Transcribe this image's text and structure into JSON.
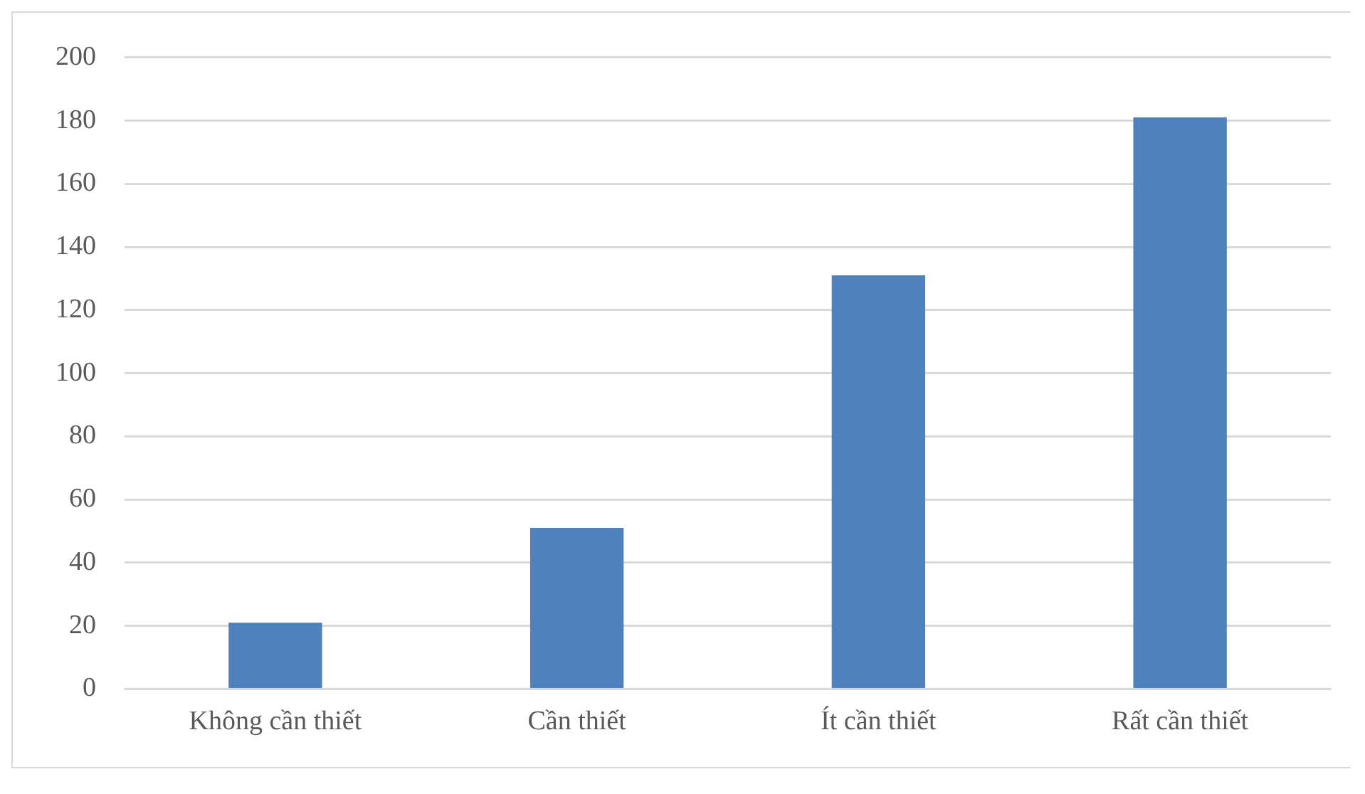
{
  "chart_data": {
    "type": "bar",
    "categories": [
      "Không cần thiết",
      "Cần thiết",
      "Ít cần thiết",
      "Rất cần thiết"
    ],
    "values": [
      21,
      51,
      131,
      181
    ],
    "color": "#4f81bd",
    "ylim": [
      0,
      200
    ],
    "yticks": [
      0,
      20,
      40,
      60,
      80,
      100,
      120,
      140,
      160,
      180,
      200
    ],
    "grid": "y",
    "legend": false
  }
}
